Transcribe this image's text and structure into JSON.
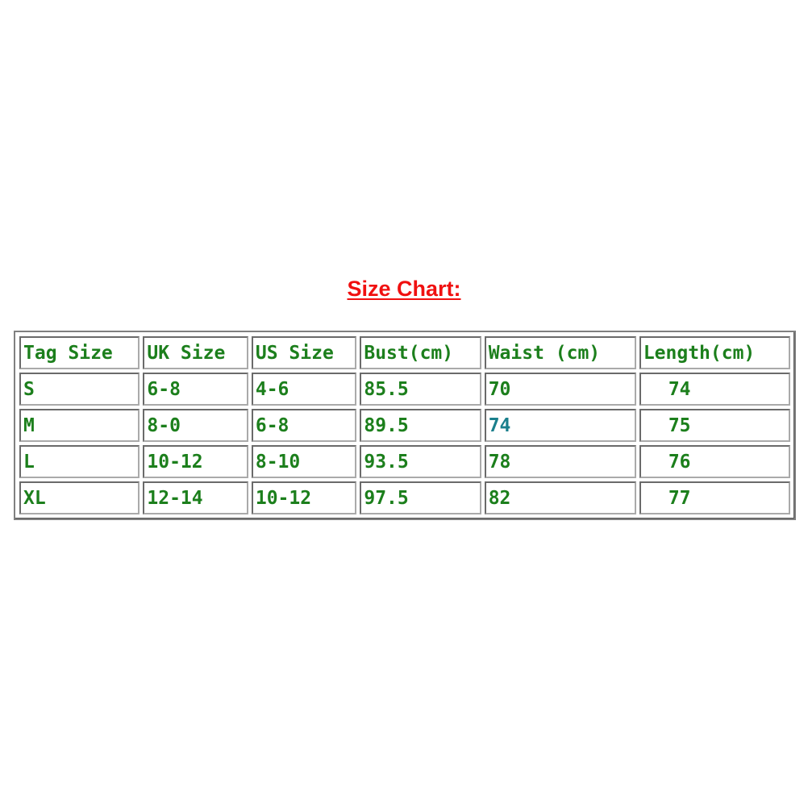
{
  "title": "Size Chart:",
  "table": {
    "headers": [
      "Tag Size",
      "UK Size",
      "US Size",
      "Bust(cm)",
      "Waist (cm)",
      "Length(cm)"
    ],
    "rows": [
      [
        "S",
        "6-8",
        "4-6",
        "85.5",
        "70",
        "74"
      ],
      [
        "M",
        "8-0",
        "6-8",
        "89.5",
        "74",
        "75"
      ],
      [
        "L",
        "10-12",
        "8-10",
        "93.5",
        "78",
        "76"
      ],
      [
        "XL",
        "12-14",
        "10-12",
        "97.5",
        "82",
        "77"
      ]
    ]
  },
  "colors": {
    "title": "#f01010",
    "text": "#1c7f1c",
    "highlight": "#1a7f8c"
  }
}
